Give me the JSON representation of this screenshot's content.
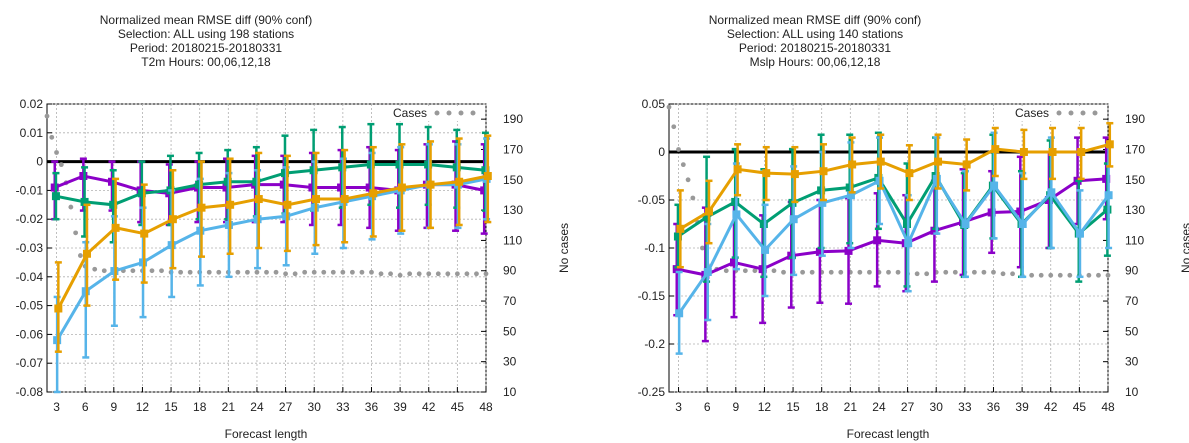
{
  "chart_data": [
    {
      "type": "line",
      "title_lines": [
        "Normalized mean RMSE diff (90% conf)",
        "Selection: ALL using   198 stations",
        "Period: 20180215-20180331",
        "T2m   Hours:  00,06,12,18"
      ],
      "xlabel": "Forecast length",
      "ylabel": "",
      "y2label": "No cases",
      "x": [
        3,
        6,
        9,
        12,
        15,
        18,
        21,
        24,
        27,
        30,
        33,
        36,
        39,
        42,
        45,
        48
      ],
      "xlim": [
        2,
        48
      ],
      "ylim": [
        -0.08,
        0.02
      ],
      "yticks": [
        "0.02",
        "0.01",
        "0",
        "-0.01",
        "-0.02",
        "-0.03",
        "-0.04",
        "-0.05",
        "-0.06",
        "-0.07",
        "-0.08"
      ],
      "y2lim": [
        10,
        200
      ],
      "y2ticks": [
        "190",
        "170",
        "150",
        "130",
        "110",
        "90",
        "70",
        "50",
        "30",
        "10"
      ],
      "grid": true,
      "legend": "top-right",
      "zero_line": true,
      "cases": {
        "name": "Cases",
        "x": [
          2,
          2.5,
          3,
          3.5,
          4,
          4.5,
          5,
          5.5,
          6,
          7,
          8,
          9,
          10,
          11,
          12,
          13,
          14,
          15,
          16,
          17,
          18,
          19,
          20,
          21,
          22,
          23,
          24,
          25,
          26,
          27,
          28,
          29,
          30,
          31,
          32,
          33,
          34,
          35,
          36,
          37,
          38,
          39,
          40,
          41,
          42,
          43,
          44,
          45,
          46,
          47,
          48
        ],
        "values": [
          192,
          178,
          168,
          160,
          148,
          132,
          115,
          100,
          93,
          91,
          90,
          90,
          90,
          90,
          90,
          90,
          90,
          89,
          89,
          89,
          89,
          89,
          89,
          89,
          89,
          89,
          89,
          89,
          89,
          88,
          88,
          89,
          89,
          89,
          89,
          89,
          89,
          89,
          89,
          88,
          88,
          87,
          88,
          88,
          88,
          88,
          88,
          88,
          88,
          88,
          88
        ],
        "color": "#999999"
      },
      "series": [
        {
          "color": "#8B00C8",
          "values": [
            -0.009,
            -0.005,
            -0.007,
            -0.01,
            -0.011,
            -0.009,
            -0.009,
            -0.008,
            -0.008,
            -0.009,
            -0.009,
            -0.009,
            -0.01,
            -0.008,
            -0.008,
            -0.01
          ],
          "lo": [
            -0.02,
            -0.017,
            -0.017,
            -0.021,
            -0.022,
            -0.021,
            -0.021,
            -0.021,
            -0.021,
            -0.022,
            -0.022,
            -0.023,
            -0.024,
            -0.023,
            -0.024,
            -0.025
          ],
          "hi": [
            0.0,
            0.001,
            0.0,
            0.0,
            -0.001,
            0.0,
            0.001,
            0.002,
            0.002,
            0.003,
            0.004,
            0.005,
            0.004,
            0.006,
            0.007,
            0.006
          ]
        },
        {
          "color": "#009E73",
          "values": [
            -0.012,
            -0.014,
            -0.015,
            -0.011,
            -0.01,
            -0.008,
            -0.007,
            -0.007,
            -0.004,
            -0.003,
            -0.002,
            -0.001,
            -0.001,
            -0.001,
            -0.002,
            -0.003
          ],
          "lo": [
            -0.02,
            -0.026,
            -0.028,
            -0.022,
            -0.022,
            -0.02,
            -0.02,
            -0.019,
            -0.018,
            -0.017,
            -0.016,
            -0.015,
            -0.016,
            -0.015,
            -0.016,
            -0.017
          ],
          "hi": [
            -0.004,
            -0.002,
            -0.003,
            0.0,
            0.002,
            0.003,
            0.004,
            0.005,
            0.009,
            0.011,
            0.012,
            0.013,
            0.013,
            0.012,
            0.011,
            0.01
          ]
        },
        {
          "color": "#56B4E9",
          "values": [
            -0.062,
            -0.045,
            -0.038,
            -0.035,
            -0.029,
            -0.024,
            -0.022,
            -0.02,
            -0.019,
            -0.016,
            -0.014,
            -0.012,
            -0.01,
            -0.008,
            -0.008,
            -0.006
          ],
          "lo": [
            -0.08,
            -0.068,
            -0.057,
            -0.054,
            -0.047,
            -0.043,
            -0.04,
            -0.037,
            -0.036,
            -0.032,
            -0.03,
            -0.027,
            -0.025,
            -0.023,
            -0.023,
            -0.02
          ],
          "hi": [
            -0.047,
            -0.028,
            -0.019,
            -0.016,
            -0.01,
            -0.006,
            -0.004,
            -0.003,
            -0.002,
            0.0,
            0.001,
            0.003,
            0.005,
            0.006,
            0.006,
            0.008
          ]
        },
        {
          "color": "#E69F00",
          "values": [
            -0.051,
            -0.032,
            -0.023,
            -0.025,
            -0.02,
            -0.016,
            -0.015,
            -0.013,
            -0.015,
            -0.013,
            -0.013,
            -0.011,
            -0.009,
            -0.008,
            -0.007,
            -0.005
          ],
          "lo": [
            -0.066,
            -0.05,
            -0.041,
            -0.042,
            -0.037,
            -0.033,
            -0.032,
            -0.03,
            -0.031,
            -0.029,
            -0.028,
            -0.026,
            -0.024,
            -0.023,
            -0.022,
            -0.021
          ],
          "hi": [
            -0.035,
            -0.015,
            -0.006,
            -0.008,
            -0.003,
            0.0,
            0.001,
            0.003,
            0.002,
            0.003,
            0.004,
            0.005,
            0.006,
            0.007,
            0.008,
            0.009
          ]
        }
      ]
    },
    {
      "type": "line",
      "title_lines": [
        "Normalized mean RMSE diff (90% conf)",
        "Selection: ALL using   140 stations",
        "Period: 20180215-20180331",
        "Mslp   Hours:  00,06,12,18"
      ],
      "xlabel": "Forecast length",
      "ylabel": "",
      "y2label": "No cases",
      "x": [
        3,
        6,
        9,
        12,
        15,
        18,
        21,
        24,
        27,
        30,
        33,
        36,
        39,
        42,
        45,
        48
      ],
      "xlim": [
        2,
        48
      ],
      "ylim": [
        -0.25,
        0.05
      ],
      "yticks": [
        "0.05",
        "0",
        "-0.05",
        "-0.1",
        "-0.15",
        "-0.2",
        "-0.25"
      ],
      "y2lim": [
        10,
        200
      ],
      "y2ticks": [
        "190",
        "170",
        "150",
        "130",
        "110",
        "90",
        "70",
        "50",
        "30",
        "10"
      ],
      "grid": true,
      "legend": "top-right",
      "zero_line": true,
      "cases": {
        "name": "Cases",
        "x": [
          2,
          2.5,
          3,
          3.5,
          4,
          4.5,
          5,
          5.5,
          6,
          7,
          8,
          9,
          10,
          11,
          12,
          13,
          14,
          15,
          16,
          17,
          18,
          19,
          20,
          21,
          22,
          23,
          24,
          25,
          26,
          27,
          28,
          29,
          30,
          31,
          32,
          33,
          34,
          35,
          36,
          37,
          38,
          39,
          40,
          41,
          42,
          43,
          44,
          45,
          46,
          47,
          48
        ],
        "values": [
          198,
          185,
          170,
          160,
          150,
          138,
          122,
          105,
          94,
          91,
          90,
          90,
          90,
          90,
          90,
          90,
          89,
          89,
          89,
          89,
          89,
          89,
          89,
          89,
          89,
          89,
          89,
          89,
          89,
          88,
          88,
          88,
          89,
          89,
          89,
          89,
          89,
          89,
          89,
          88,
          88,
          87,
          87,
          87,
          87,
          87,
          87,
          87,
          87,
          87,
          87
        ],
        "color": "#999999"
      },
      "series": [
        {
          "color": "#8B00C8",
          "values": [
            -0.122,
            -0.128,
            -0.115,
            -0.122,
            -0.108,
            -0.104,
            -0.103,
            -0.092,
            -0.095,
            -0.082,
            -0.073,
            -0.063,
            -0.062,
            -0.05,
            -0.03,
            -0.028
          ],
          "lo": [
            -0.17,
            -0.197,
            -0.172,
            -0.178,
            -0.162,
            -0.157,
            -0.158,
            -0.14,
            -0.145,
            -0.135,
            -0.128,
            -0.105,
            -0.12,
            -0.1,
            -0.075,
            -0.07
          ],
          "hi": [
            -0.075,
            -0.058,
            -0.055,
            -0.066,
            -0.052,
            -0.05,
            -0.048,
            -0.043,
            -0.045,
            -0.03,
            -0.018,
            -0.02,
            -0.005,
            0.0,
            0.015,
            0.015
          ]
        },
        {
          "color": "#009E73",
          "values": [
            -0.088,
            -0.068,
            -0.052,
            -0.075,
            -0.053,
            -0.04,
            -0.037,
            -0.027,
            -0.075,
            -0.025,
            -0.076,
            -0.035,
            -0.075,
            -0.045,
            -0.085,
            -0.06
          ],
          "lo": [
            -0.12,
            -0.135,
            -0.11,
            -0.13,
            -0.11,
            -0.1,
            -0.095,
            -0.08,
            -0.14,
            -0.08,
            -0.13,
            -0.09,
            -0.13,
            -0.1,
            -0.135,
            -0.108
          ],
          "hi": [
            -0.055,
            -0.005,
            0.003,
            -0.018,
            0.003,
            0.018,
            0.018,
            0.02,
            -0.012,
            0.015,
            -0.022,
            0.018,
            -0.02,
            0.012,
            -0.03,
            -0.012
          ]
        },
        {
          "color": "#56B4E9",
          "values": [
            -0.168,
            -0.125,
            -0.065,
            -0.102,
            -0.07,
            -0.053,
            -0.045,
            -0.03,
            -0.095,
            -0.028,
            -0.075,
            -0.035,
            -0.075,
            -0.042,
            -0.085,
            -0.045
          ],
          "lo": [
            -0.21,
            -0.175,
            -0.122,
            -0.15,
            -0.128,
            -0.108,
            -0.1,
            -0.075,
            -0.145,
            -0.085,
            -0.13,
            -0.09,
            -0.13,
            -0.1,
            -0.13,
            -0.1
          ],
          "hi": [
            -0.125,
            -0.075,
            -0.012,
            -0.055,
            -0.015,
            0.0,
            0.01,
            0.015,
            -0.045,
            0.015,
            -0.02,
            0.02,
            -0.022,
            0.015,
            -0.04,
            0.008
          ]
        },
        {
          "color": "#E69F00",
          "values": [
            -0.08,
            -0.062,
            -0.018,
            -0.022,
            -0.023,
            -0.02,
            -0.013,
            -0.01,
            -0.022,
            -0.01,
            -0.013,
            0.003,
            0.0,
            0.0,
            0.0,
            0.008
          ],
          "lo": [
            -0.12,
            -0.095,
            -0.045,
            -0.05,
            -0.052,
            -0.05,
            -0.042,
            -0.038,
            -0.05,
            -0.038,
            -0.04,
            -0.025,
            -0.028,
            -0.028,
            -0.028,
            -0.015
          ],
          "hi": [
            -0.04,
            -0.03,
            0.008,
            0.005,
            0.005,
            0.008,
            0.015,
            0.018,
            0.007,
            0.018,
            0.013,
            0.025,
            0.023,
            0.025,
            0.025,
            0.03
          ]
        }
      ]
    }
  ]
}
